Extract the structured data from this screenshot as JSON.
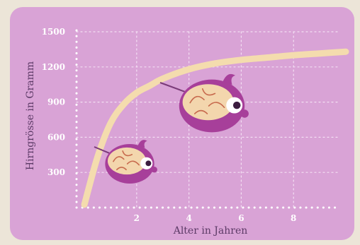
{
  "colors": {
    "background": "#ece5d8",
    "panel": "#d9a3d6",
    "curve": "#f4dcae",
    "grid": "#f3dff3",
    "axis_text": "#5c3a66",
    "brain_body": "#a73f9a",
    "brain_fold": "#f3d6ad"
  },
  "chart_data": {
    "type": "line",
    "xlabel": "Alter in Jahren",
    "ylabel": "Hirngrösse in Gramm",
    "xlim": [
      -0.3,
      10
    ],
    "ylim": [
      0,
      1500
    ],
    "x_ticks": [
      2,
      4,
      6,
      8
    ],
    "y_ticks": [
      300,
      600,
      900,
      1200,
      1500
    ],
    "grid": true,
    "series": [
      {
        "x": [
          0,
          0.5,
          1,
          1.5,
          2,
          2.5,
          3,
          4,
          5,
          6,
          7,
          8,
          9,
          10
        ],
        "values": [
          25,
          430,
          720,
          880,
          980,
          1040,
          1100,
          1180,
          1230,
          1260,
          1280,
          1300,
          1315,
          1330
        ]
      }
    ],
    "annotations": [
      {
        "icon": "brain-icon",
        "x": 0.75,
        "y": 520,
        "size": "small"
      },
      {
        "icon": "brain-icon",
        "x": 3.1,
        "y": 1050,
        "size": "large"
      }
    ]
  }
}
